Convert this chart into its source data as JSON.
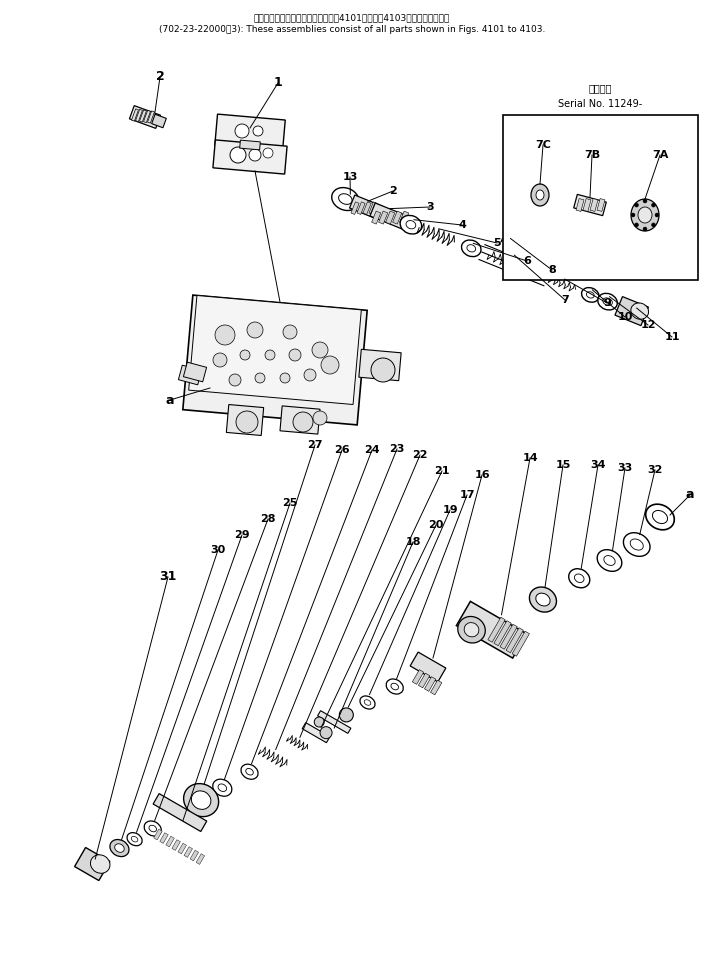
{
  "title_line1": "これらのアセンブリの構成部品は笥4101図から笥4103図まで含みます。",
  "title_line2": "(702-23-22000～3): These assemblies consist of all parts shown in Figs. 4101 to 4103.",
  "serial_label_jp": "適用号数",
  "serial_label_en": "Serial No. 11249-",
  "bg": "#ffffff",
  "lc": "#000000",
  "fig_width": 7.04,
  "fig_height": 9.55,
  "dpi": 100
}
